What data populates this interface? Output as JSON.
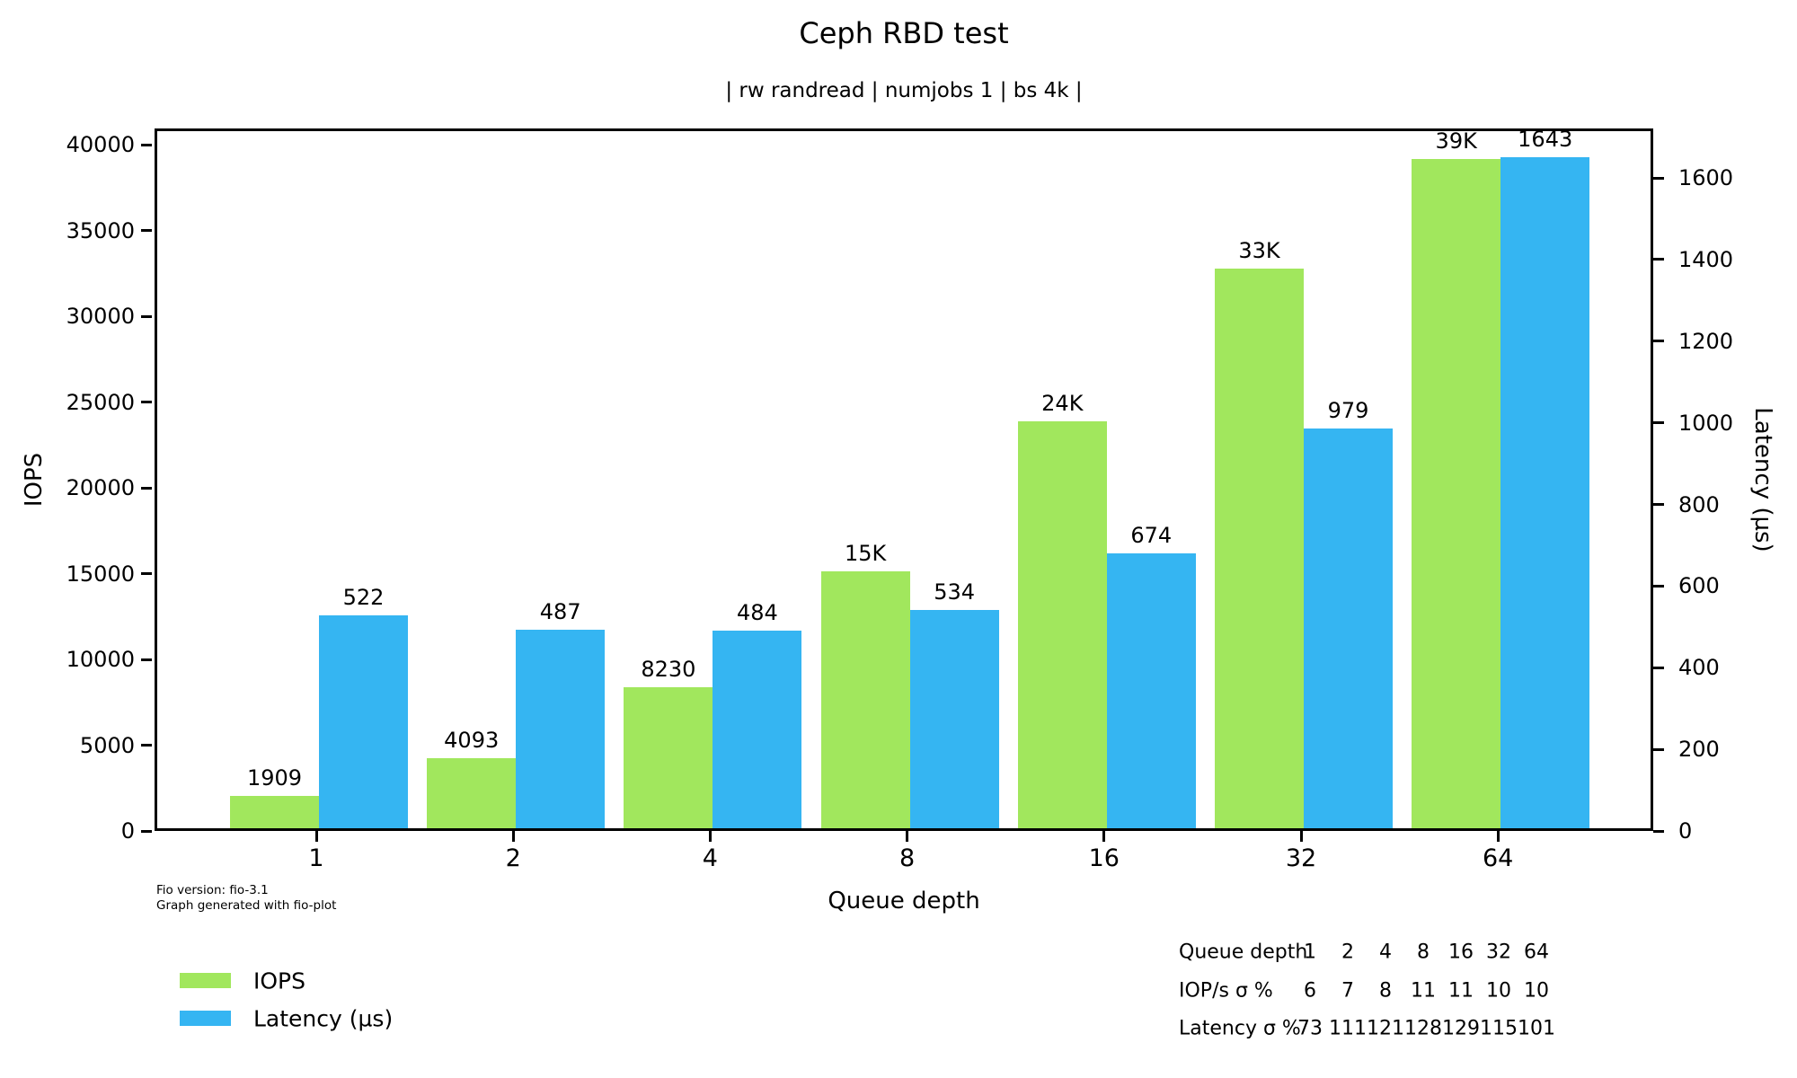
{
  "title": "Ceph RBD test",
  "subtitle": "| rw randread | numjobs 1 | bs 4k |",
  "colors": {
    "iops_bar": "#A1E75D",
    "latency_bar": "#35B5F2",
    "axis": "#000000",
    "background": "#FFFFFF"
  },
  "chart_data": {
    "type": "bar",
    "categories": [
      "1",
      "2",
      "4",
      "8",
      "16",
      "32",
      "64"
    ],
    "xlabel": "Queue depth",
    "grid": false,
    "legend_position": "bottom-left",
    "series": [
      {
        "name": "IOPS",
        "axis": "left",
        "color": "#A1E75D",
        "values": [
          1909,
          4093,
          8230,
          15000,
          23700,
          32600,
          39000
        ],
        "labels": [
          "1909",
          "4093",
          "8230",
          "15K",
          "24K",
          "33K",
          "39K"
        ]
      },
      {
        "name": "Latency (µs)",
        "axis": "right",
        "color": "#35B5F2",
        "values": [
          522,
          487,
          484,
          534,
          674,
          979,
          1643
        ],
        "labels": [
          "522",
          "487",
          "484",
          "534",
          "674",
          "979",
          "1643"
        ]
      }
    ],
    "left_axis": {
      "label": "IOPS",
      "ticks": [
        0,
        5000,
        10000,
        15000,
        20000,
        25000,
        30000,
        35000,
        40000
      ],
      "tick_labels": [
        "0",
        "5000",
        "10000",
        "15000",
        "20000",
        "25000",
        "30000",
        "35000",
        "40000"
      ],
      "ylim": [
        0,
        40950
      ]
    },
    "right_axis": {
      "label": "Latency (µs)",
      "ticks": [
        0,
        200,
        400,
        600,
        800,
        1000,
        1200,
        1400,
        1600
      ],
      "tick_labels": [
        "0",
        "200",
        "400",
        "600",
        "800",
        "1000",
        "1200",
        "1400",
        "1600"
      ],
      "ylim": [
        0,
        1721
      ]
    }
  },
  "legend": {
    "items": [
      {
        "label": "IOPS",
        "color": "#A1E75D"
      },
      {
        "label": "Latency (µs)",
        "color": "#35B5F2"
      }
    ]
  },
  "footer": {
    "line1": "Fio version: fio-3.1",
    "line2": "Graph generated with fio-plot"
  },
  "sigma_table": {
    "rows": [
      {
        "label": "Queue depth",
        "values": [
          "1",
          "2",
          "4",
          "8",
          "16",
          "32",
          "64"
        ]
      },
      {
        "label": "IOP/s σ %",
        "values": [
          "6",
          "7",
          "8",
          "11",
          "11",
          "10",
          "10"
        ]
      },
      {
        "label": "Latency σ %",
        "values": [
          "73",
          "111",
          "121",
          "128",
          "129",
          "115",
          "101"
        ]
      }
    ]
  }
}
